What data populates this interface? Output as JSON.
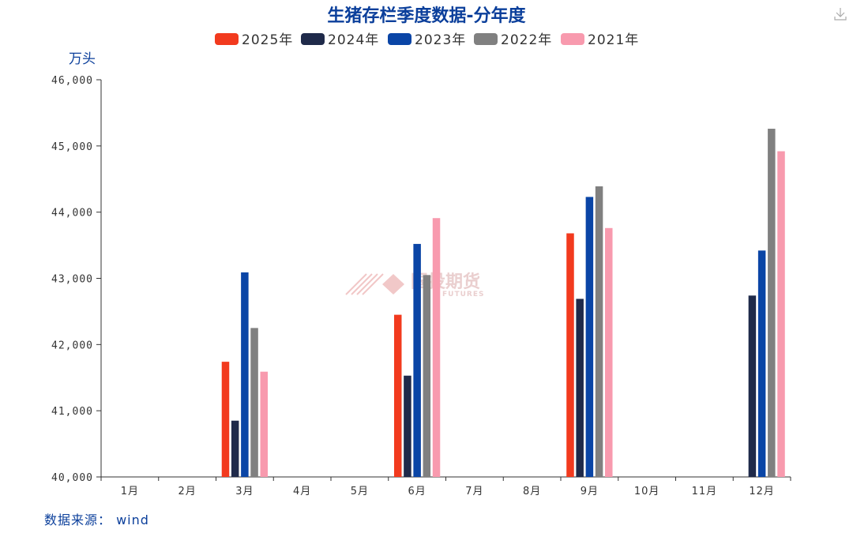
{
  "toolbar": {
    "download_icon": "download-icon"
  },
  "watermark": {
    "text": "国投期货",
    "sub": "FUTURES"
  },
  "source": "数据来源： wind",
  "chart_data": {
    "type": "bar",
    "title": "生猪存栏季度数据-分年度",
    "ylabel": "万头",
    "xlabel": "",
    "ylim": [
      40000,
      46000
    ],
    "yticks": [
      40000,
      41000,
      42000,
      43000,
      44000,
      45000,
      46000
    ],
    "ytick_labels": [
      "40,000",
      "41,000",
      "42,000",
      "43,000",
      "44,000",
      "45,000",
      "46,000"
    ],
    "categories": [
      "1月",
      "2月",
      "3月",
      "4月",
      "5月",
      "6月",
      "7月",
      "8月",
      "9月",
      "10月",
      "11月",
      "12月"
    ],
    "legend_position": "top",
    "grid": false,
    "series": [
      {
        "name": "2025年",
        "color": "#f23a1e",
        "values": [
          null,
          null,
          41740,
          null,
          null,
          42450,
          null,
          null,
          43680,
          null,
          null,
          null
        ]
      },
      {
        "name": "2024年",
        "color": "#1f2a4a",
        "values": [
          null,
          null,
          40850,
          null,
          null,
          41530,
          null,
          null,
          42690,
          null,
          null,
          42740
        ]
      },
      {
        "name": "2023年",
        "color": "#0a45a6",
        "values": [
          null,
          null,
          43090,
          null,
          null,
          43520,
          null,
          null,
          44230,
          null,
          null,
          43420
        ]
      },
      {
        "name": "2022年",
        "color": "#808080",
        "values": [
          null,
          null,
          42250,
          null,
          null,
          43050,
          null,
          null,
          44390,
          null,
          null,
          45260
        ]
      },
      {
        "name": "2021年",
        "color": "#f89aae",
        "values": [
          null,
          null,
          41590,
          null,
          null,
          43910,
          null,
          null,
          43760,
          null,
          null,
          44920
        ]
      }
    ]
  }
}
